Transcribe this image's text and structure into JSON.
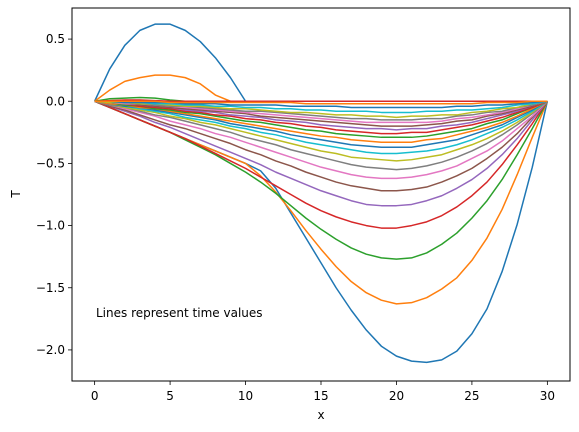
{
  "chart_data": {
    "type": "line",
    "title": "",
    "xlabel": "x",
    "ylabel": "T",
    "xlim": [
      -1.5,
      31.5
    ],
    "ylim": [
      -2.25,
      0.75
    ],
    "xticks": [
      0,
      5,
      10,
      15,
      20,
      25,
      30
    ],
    "xtick_labels": [
      "0",
      "5",
      "10",
      "15",
      "20",
      "25",
      "30"
    ],
    "yticks": [
      0.5,
      0.0,
      -0.5,
      -1.0,
      -1.5,
      -2.0
    ],
    "ytick_labels": [
      "0.5",
      "0.0",
      "−0.5",
      "−1.0",
      "−1.5",
      "−2.0"
    ],
    "grid": false,
    "legend": false,
    "annotation": "Lines represent time values",
    "x": [
      0,
      1,
      2,
      3,
      4,
      5,
      6,
      7,
      8,
      9,
      10,
      11,
      12,
      13,
      14,
      15,
      16,
      17,
      18,
      19,
      20,
      21,
      22,
      23,
      24,
      25,
      26,
      27,
      28,
      29,
      30
    ],
    "series": [
      {
        "color": "#1f77b4",
        "values": [
          0.0,
          0.26,
          0.45,
          0.57,
          0.62,
          0.62,
          0.57,
          0.48,
          0.35,
          0.19,
          0.0,
          0.0,
          0.0,
          0.0,
          0.0,
          0.0,
          0.0,
          0.0,
          0.0,
          0.0,
          0.0,
          0.0,
          0.0,
          0.0,
          0.0,
          0.0,
          0.0,
          0.0,
          0.0,
          0.0,
          0.0
        ]
      },
      {
        "color": "#ff7f0e",
        "values": [
          0.0,
          0.09,
          0.16,
          0.19,
          0.21,
          0.21,
          0.19,
          0.14,
          0.05,
          0.0,
          0.0,
          0.0,
          0.0,
          0.0,
          0.0,
          0.0,
          0.0,
          0.0,
          0.0,
          0.0,
          0.0,
          0.0,
          0.0,
          0.0,
          0.0,
          0.0,
          0.0,
          0.0,
          0.0,
          0.0,
          0.0
        ]
      },
      {
        "color": "#2ca02c",
        "values": [
          0.0,
          0.02,
          0.025,
          0.03,
          0.025,
          0.01,
          0.0,
          0.0,
          0.0,
          0.0,
          0.0,
          0.0,
          0.0,
          0.0,
          0.0,
          0.0,
          0.0,
          0.0,
          0.0,
          0.0,
          0.0,
          0.0,
          0.0,
          0.0,
          0.0,
          0.0,
          0.0,
          0.0,
          0.0,
          0.0,
          0.0
        ]
      },
      {
        "color": "#d62728",
        "values": [
          0.0,
          0.005,
          0.01,
          0.01,
          0.005,
          0.0,
          0.0,
          0.0,
          0.0,
          0.0,
          0.0,
          0.0,
          0.0,
          0.0,
          0.0,
          0.0,
          0.0,
          0.0,
          0.0,
          0.0,
          0.0,
          0.0,
          0.0,
          0.0,
          0.0,
          0.0,
          0.0,
          0.0,
          0.0,
          0.0,
          0.0
        ]
      },
      {
        "color": "#1f77b4",
        "values": [
          0.0,
          -0.05,
          -0.1,
          -0.15,
          -0.2,
          -0.25,
          -0.3,
          -0.35,
          -0.4,
          -0.45,
          -0.5,
          -0.56,
          -0.7,
          -0.9,
          -1.1,
          -1.3,
          -1.5,
          -1.68,
          -1.84,
          -1.97,
          -2.05,
          -2.09,
          -2.1,
          -2.08,
          -2.01,
          -1.87,
          -1.67,
          -1.37,
          -0.99,
          -0.53,
          0.0
        ]
      },
      {
        "color": "#ff7f0e",
        "values": [
          0.0,
          -0.05,
          -0.1,
          -0.15,
          -0.2,
          -0.25,
          -0.3,
          -0.35,
          -0.4,
          -0.45,
          -0.5,
          -0.6,
          -0.73,
          -0.88,
          -1.04,
          -1.19,
          -1.33,
          -1.45,
          -1.54,
          -1.6,
          -1.63,
          -1.62,
          -1.58,
          -1.51,
          -1.42,
          -1.28,
          -1.1,
          -0.87,
          -0.59,
          -0.29,
          0.0
        ]
      },
      {
        "color": "#2ca02c",
        "values": [
          0.0,
          -0.05,
          -0.1,
          -0.15,
          -0.2,
          -0.25,
          -0.31,
          -0.37,
          -0.43,
          -0.5,
          -0.57,
          -0.65,
          -0.74,
          -0.84,
          -0.94,
          -1.03,
          -1.11,
          -1.18,
          -1.23,
          -1.26,
          -1.27,
          -1.26,
          -1.22,
          -1.15,
          -1.06,
          -0.94,
          -0.8,
          -0.63,
          -0.43,
          -0.22,
          0.0
        ]
      },
      {
        "color": "#d62728",
        "values": [
          0.0,
          -0.05,
          -0.1,
          -0.15,
          -0.2,
          -0.25,
          -0.3,
          -0.36,
          -0.42,
          -0.48,
          -0.54,
          -0.61,
          -0.68,
          -0.75,
          -0.82,
          -0.88,
          -0.93,
          -0.97,
          -1.0,
          -1.02,
          -1.02,
          -1.0,
          -0.97,
          -0.92,
          -0.85,
          -0.76,
          -0.65,
          -0.51,
          -0.35,
          -0.18,
          0.0
        ]
      },
      {
        "color": "#9467bd",
        "values": [
          0.0,
          -0.04,
          -0.08,
          -0.12,
          -0.17,
          -0.21,
          -0.26,
          -0.31,
          -0.36,
          -0.41,
          -0.46,
          -0.51,
          -0.57,
          -0.62,
          -0.67,
          -0.72,
          -0.76,
          -0.8,
          -0.83,
          -0.84,
          -0.84,
          -0.83,
          -0.8,
          -0.76,
          -0.7,
          -0.63,
          -0.54,
          -0.43,
          -0.3,
          -0.15,
          0.0
        ]
      },
      {
        "color": "#8c564b",
        "values": [
          0.0,
          -0.04,
          -0.07,
          -0.11,
          -0.15,
          -0.19,
          -0.22,
          -0.26,
          -0.3,
          -0.34,
          -0.39,
          -0.43,
          -0.48,
          -0.52,
          -0.57,
          -0.61,
          -0.65,
          -0.68,
          -0.7,
          -0.72,
          -0.72,
          -0.71,
          -0.69,
          -0.65,
          -0.6,
          -0.54,
          -0.46,
          -0.37,
          -0.26,
          -0.13,
          0.0
        ]
      },
      {
        "color": "#e377c2",
        "values": [
          0.0,
          -0.03,
          -0.06,
          -0.09,
          -0.12,
          -0.16,
          -0.19,
          -0.22,
          -0.26,
          -0.29,
          -0.33,
          -0.37,
          -0.41,
          -0.45,
          -0.49,
          -0.53,
          -0.56,
          -0.59,
          -0.61,
          -0.62,
          -0.62,
          -0.61,
          -0.59,
          -0.56,
          -0.52,
          -0.46,
          -0.4,
          -0.32,
          -0.22,
          -0.12,
          0.0
        ]
      },
      {
        "color": "#7f7f7f",
        "values": [
          0.0,
          -0.03,
          -0.05,
          -0.08,
          -0.11,
          -0.13,
          -0.16,
          -0.19,
          -0.22,
          -0.25,
          -0.29,
          -0.32,
          -0.35,
          -0.39,
          -0.42,
          -0.45,
          -0.48,
          -0.51,
          -0.53,
          -0.54,
          -0.55,
          -0.54,
          -0.52,
          -0.49,
          -0.45,
          -0.4,
          -0.34,
          -0.27,
          -0.19,
          -0.1,
          0.0
        ]
      },
      {
        "color": "#bcbd22",
        "values": [
          0.0,
          -0.02,
          -0.05,
          -0.07,
          -0.09,
          -0.12,
          -0.14,
          -0.17,
          -0.19,
          -0.22,
          -0.25,
          -0.28,
          -0.31,
          -0.34,
          -0.37,
          -0.4,
          -0.42,
          -0.45,
          -0.46,
          -0.47,
          -0.48,
          -0.47,
          -0.45,
          -0.43,
          -0.39,
          -0.35,
          -0.3,
          -0.24,
          -0.17,
          -0.09,
          0.0
        ]
      },
      {
        "color": "#17becf",
        "values": [
          0.0,
          -0.02,
          -0.04,
          -0.06,
          -0.08,
          -0.1,
          -0.13,
          -0.15,
          -0.17,
          -0.2,
          -0.22,
          -0.25,
          -0.27,
          -0.3,
          -0.33,
          -0.35,
          -0.37,
          -0.39,
          -0.41,
          -0.42,
          -0.42,
          -0.41,
          -0.4,
          -0.38,
          -0.35,
          -0.31,
          -0.26,
          -0.21,
          -0.15,
          -0.08,
          0.0
        ]
      },
      {
        "color": "#1f77b4",
        "values": [
          0.0,
          -0.02,
          -0.04,
          -0.05,
          -0.07,
          -0.09,
          -0.11,
          -0.13,
          -0.15,
          -0.18,
          -0.2,
          -0.22,
          -0.24,
          -0.27,
          -0.29,
          -0.31,
          -0.33,
          -0.35,
          -0.36,
          -0.37,
          -0.37,
          -0.37,
          -0.35,
          -0.33,
          -0.31,
          -0.27,
          -0.23,
          -0.19,
          -0.13,
          -0.07,
          0.0
        ]
      },
      {
        "color": "#ff7f0e",
        "values": [
          0.0,
          -0.02,
          -0.03,
          -0.05,
          -0.06,
          -0.08,
          -0.1,
          -0.12,
          -0.14,
          -0.16,
          -0.18,
          -0.2,
          -0.22,
          -0.24,
          -0.26,
          -0.28,
          -0.29,
          -0.31,
          -0.32,
          -0.33,
          -0.33,
          -0.33,
          -0.31,
          -0.3,
          -0.27,
          -0.24,
          -0.21,
          -0.17,
          -0.12,
          -0.06,
          0.0
        ]
      },
      {
        "color": "#2ca02c",
        "values": [
          0.0,
          -0.01,
          -0.03,
          -0.04,
          -0.06,
          -0.07,
          -0.09,
          -0.1,
          -0.12,
          -0.14,
          -0.16,
          -0.17,
          -0.19,
          -0.21,
          -0.23,
          -0.24,
          -0.26,
          -0.27,
          -0.28,
          -0.29,
          -0.29,
          -0.29,
          -0.28,
          -0.26,
          -0.24,
          -0.22,
          -0.18,
          -0.15,
          -0.1,
          -0.05,
          0.0
        ]
      },
      {
        "color": "#d62728",
        "values": [
          0.0,
          -0.01,
          -0.02,
          -0.04,
          -0.05,
          -0.06,
          -0.08,
          -0.09,
          -0.11,
          -0.12,
          -0.14,
          -0.15,
          -0.17,
          -0.18,
          -0.2,
          -0.21,
          -0.23,
          -0.24,
          -0.25,
          -0.26,
          -0.26,
          -0.25,
          -0.25,
          -0.23,
          -0.21,
          -0.19,
          -0.16,
          -0.13,
          -0.09,
          -0.05,
          0.0
        ]
      },
      {
        "color": "#9467bd",
        "values": [
          0.0,
          -0.01,
          -0.02,
          -0.03,
          -0.04,
          -0.05,
          -0.07,
          -0.08,
          -0.09,
          -0.11,
          -0.12,
          -0.13,
          -0.15,
          -0.16,
          -0.17,
          -0.19,
          -0.2,
          -0.21,
          -0.22,
          -0.22,
          -0.23,
          -0.22,
          -0.22,
          -0.2,
          -0.19,
          -0.17,
          -0.14,
          -0.11,
          -0.08,
          -0.04,
          0.0
        ]
      },
      {
        "color": "#8c564b",
        "values": [
          0.0,
          -0.01,
          -0.02,
          -0.03,
          -0.04,
          -0.05,
          -0.06,
          -0.07,
          -0.08,
          -0.09,
          -0.1,
          -0.12,
          -0.13,
          -0.14,
          -0.15,
          -0.16,
          -0.17,
          -0.18,
          -0.19,
          -0.2,
          -0.2,
          -0.2,
          -0.19,
          -0.18,
          -0.16,
          -0.15,
          -0.12,
          -0.1,
          -0.07,
          -0.04,
          0.0
        ]
      },
      {
        "color": "#e377c2",
        "values": [
          0.0,
          -0.01,
          -0.02,
          -0.02,
          -0.03,
          -0.04,
          -0.05,
          -0.06,
          -0.07,
          -0.08,
          -0.09,
          -0.1,
          -0.11,
          -0.12,
          -0.13,
          -0.14,
          -0.15,
          -0.16,
          -0.17,
          -0.17,
          -0.17,
          -0.17,
          -0.17,
          -0.16,
          -0.14,
          -0.13,
          -0.11,
          -0.09,
          -0.06,
          -0.03,
          0.0
        ]
      },
      {
        "color": "#7f7f7f",
        "values": [
          0.0,
          -0.01,
          -0.01,
          -0.02,
          -0.03,
          -0.04,
          -0.04,
          -0.05,
          -0.06,
          -0.07,
          -0.08,
          -0.08,
          -0.09,
          -0.1,
          -0.11,
          -0.12,
          -0.13,
          -0.14,
          -0.14,
          -0.15,
          -0.15,
          -0.15,
          -0.14,
          -0.14,
          -0.12,
          -0.11,
          -0.09,
          -0.08,
          -0.05,
          -0.03,
          0.0
        ]
      },
      {
        "color": "#bcbd22",
        "values": [
          0.0,
          -0.01,
          -0.01,
          -0.02,
          -0.02,
          -0.03,
          -0.04,
          -0.04,
          -0.05,
          -0.06,
          -0.06,
          -0.07,
          -0.08,
          -0.09,
          -0.09,
          -0.1,
          -0.11,
          -0.11,
          -0.12,
          -0.12,
          -0.13,
          -0.12,
          -0.12,
          -0.11,
          -0.11,
          -0.09,
          -0.08,
          -0.06,
          -0.05,
          -0.02,
          0.0
        ]
      },
      {
        "color": "#17becf",
        "values": [
          0.0,
          -0.0,
          -0.01,
          -0.01,
          -0.02,
          -0.02,
          -0.03,
          -0.03,
          -0.04,
          -0.04,
          -0.05,
          -0.05,
          -0.06,
          -0.06,
          -0.07,
          -0.07,
          -0.08,
          -0.08,
          -0.08,
          -0.09,
          -0.09,
          -0.09,
          -0.08,
          -0.08,
          -0.07,
          -0.07,
          -0.06,
          -0.05,
          -0.03,
          -0.02,
          0.0
        ]
      },
      {
        "color": "#1f77b4",
        "values": [
          0.0,
          -0.0,
          -0.01,
          -0.01,
          -0.01,
          -0.01,
          -0.02,
          -0.02,
          -0.02,
          -0.03,
          -0.03,
          -0.03,
          -0.03,
          -0.04,
          -0.04,
          -0.04,
          -0.04,
          -0.05,
          -0.05,
          -0.05,
          -0.05,
          -0.05,
          -0.05,
          -0.05,
          -0.04,
          -0.04,
          -0.03,
          -0.03,
          -0.02,
          -0.01,
          0.0
        ]
      },
      {
        "color": "#ff7f0e",
        "values": [
          0.0,
          -0.0,
          -0.0,
          -0.0,
          -0.0,
          -0.01,
          -0.01,
          -0.01,
          -0.01,
          -0.01,
          -0.01,
          -0.01,
          -0.01,
          -0.01,
          -0.02,
          -0.02,
          -0.02,
          -0.02,
          -0.02,
          -0.02,
          -0.02,
          -0.02,
          -0.02,
          -0.02,
          -0.02,
          -0.02,
          -0.01,
          -0.01,
          -0.01,
          -0.0,
          0.0
        ]
      }
    ]
  }
}
